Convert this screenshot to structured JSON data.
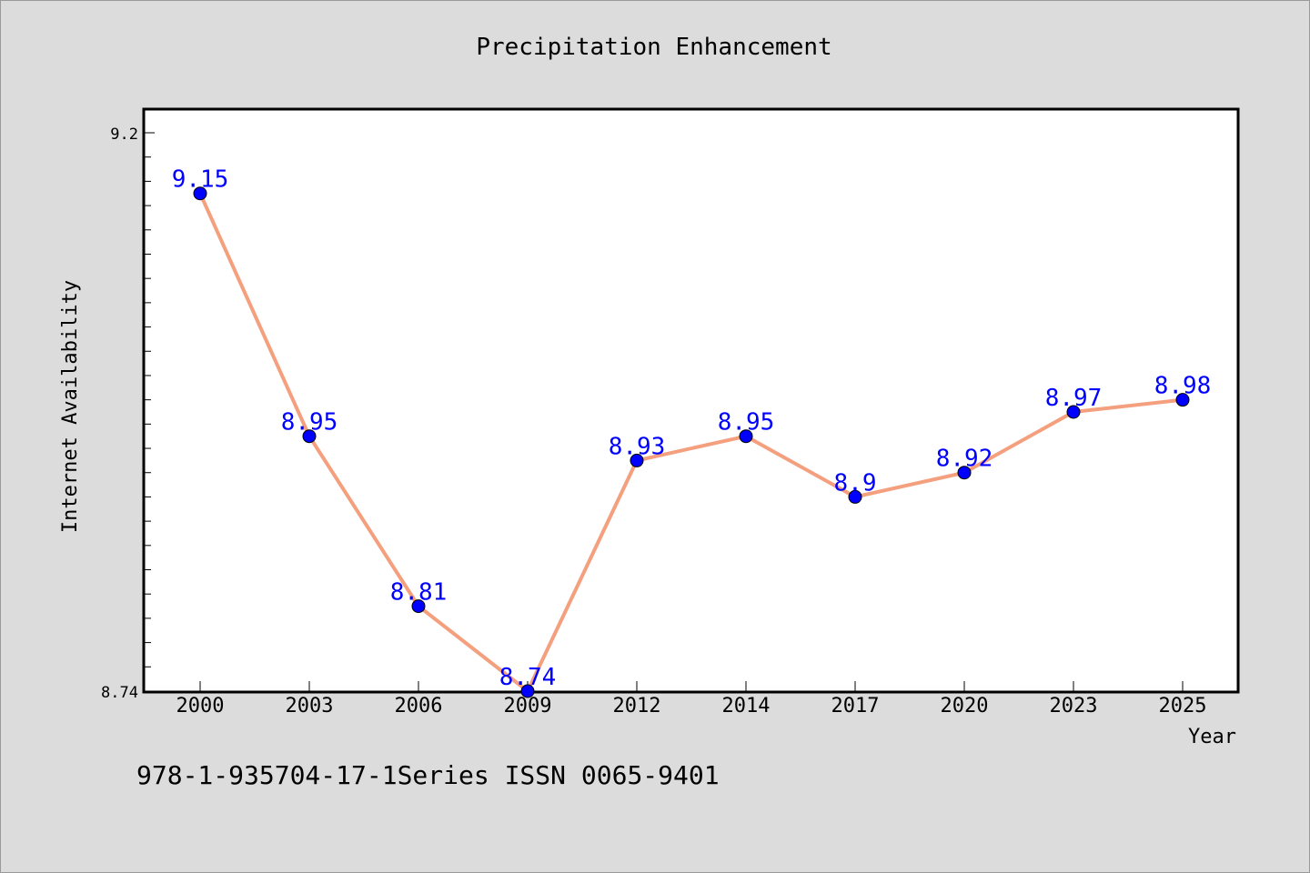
{
  "chart_data": {
    "type": "line",
    "title": "Precipitation Enhancement",
    "xlabel": "Year",
    "ylabel": "Internet Availability",
    "categories": [
      "2000",
      "2003",
      "2006",
      "2009",
      "2012",
      "2014",
      "2017",
      "2020",
      "2023",
      "2025"
    ],
    "series": [
      {
        "values": [
          9.15,
          8.95,
          8.81,
          8.74,
          8.93,
          8.95,
          8.9,
          8.92,
          8.97,
          8.98
        ],
        "labels": [
          "9.15",
          "8.95",
          "8.81",
          "8.74",
          "8.93",
          "8.95",
          "8.9",
          "8.92",
          "8.97",
          "8.98"
        ]
      }
    ],
    "ylim": [
      8.74,
      9.2
    ],
    "yticks": [
      "8.74",
      "9.2"
    ],
    "grid": false,
    "colors": {
      "line": "#f4a07e",
      "marker": "#0000ff",
      "label": "#0000ff",
      "plot_bg": "#ffffff",
      "page_bg": "#dcdcdc"
    }
  },
  "footer": {
    "text": "978-1-935704-17-1Series ISSN 0065-9401"
  }
}
